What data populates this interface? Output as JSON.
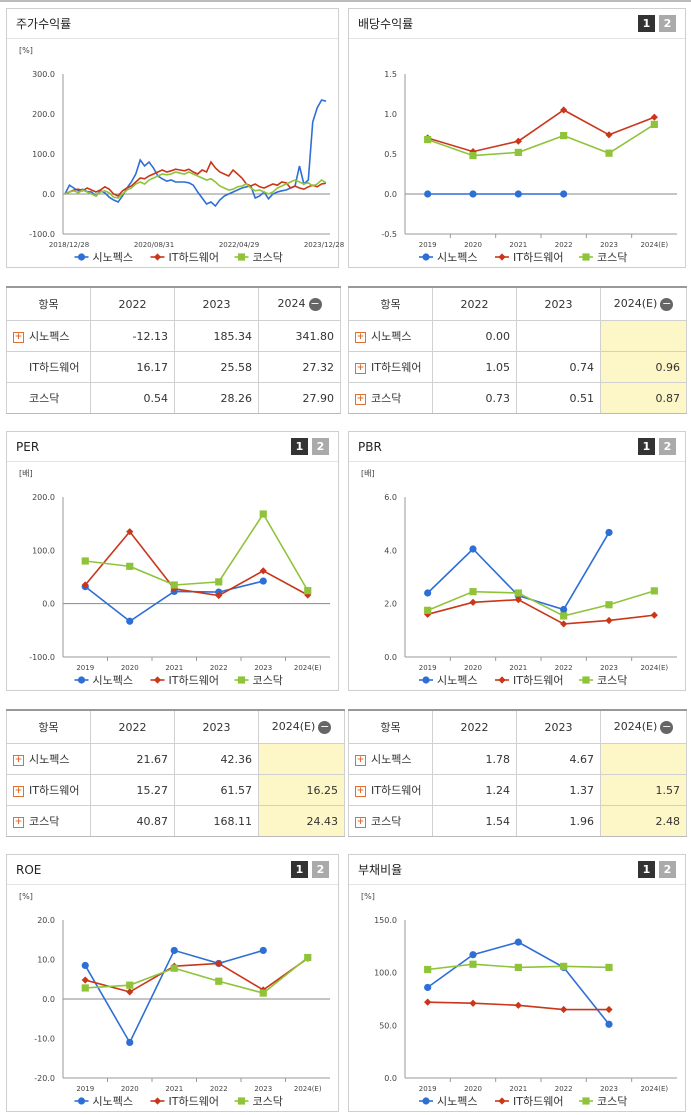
{
  "colors": {
    "s1": "#2e6fd6",
    "s2": "#c9361a",
    "s3": "#8fc43a"
  },
  "series_names": [
    "시노펙스",
    "IT하드웨어",
    "코스닥"
  ],
  "panels": {
    "stock": {
      "title": "주가수익률",
      "unit": "[%]"
    },
    "dividend": {
      "title": "배당수익률",
      "page1": "1",
      "page2": "2"
    },
    "per": {
      "title": "PER",
      "unit": "[배]",
      "page1": "1",
      "page2": "2"
    },
    "pbr": {
      "title": "PBR",
      "unit": "[배]",
      "page1": "1",
      "page2": "2"
    },
    "roe": {
      "title": "ROE",
      "unit": "[%]",
      "page1": "1",
      "page2": "2"
    },
    "debt": {
      "title": "부채비율",
      "unit": "[%]",
      "page1": "1",
      "page2": "2"
    }
  },
  "tables": {
    "stock": {
      "header": [
        "항목",
        "2022",
        "2023",
        "2024"
      ],
      "rows": [
        {
          "name": "시노펙스",
          "plus": true,
          "values": [
            "-12.13",
            "185.34",
            "341.80"
          ]
        },
        {
          "name": "IT하드웨어",
          "plus": false,
          "values": [
            "16.17",
            "25.58",
            "27.32"
          ]
        },
        {
          "name": "코스닥",
          "plus": false,
          "values": [
            "0.54",
            "28.26",
            "27.90"
          ]
        }
      ]
    },
    "dividend": {
      "header": [
        "항목",
        "2022",
        "2023",
        "2024(E)"
      ],
      "rows": [
        {
          "name": "시노펙스",
          "plus": true,
          "values": [
            "0.00",
            "",
            ""
          ]
        },
        {
          "name": "IT하드웨어",
          "plus": true,
          "values": [
            "1.05",
            "0.74",
            "0.96"
          ]
        },
        {
          "name": "코스닥",
          "plus": true,
          "values": [
            "0.73",
            "0.51",
            "0.87"
          ]
        }
      ]
    },
    "per": {
      "header": [
        "항목",
        "2022",
        "2023",
        "2024(E)"
      ],
      "rows": [
        {
          "name": "시노펙스",
          "plus": true,
          "values": [
            "21.67",
            "42.36",
            ""
          ]
        },
        {
          "name": "IT하드웨어",
          "plus": true,
          "values": [
            "15.27",
            "61.57",
            "16.25"
          ]
        },
        {
          "name": "코스닥",
          "plus": true,
          "values": [
            "40.87",
            "168.11",
            "24.43"
          ]
        }
      ]
    },
    "pbr": {
      "header": [
        "항목",
        "2022",
        "2023",
        "2024(E)"
      ],
      "rows": [
        {
          "name": "시노펙스",
          "plus": true,
          "values": [
            "1.78",
            "4.67",
            ""
          ]
        },
        {
          "name": "IT하드웨어",
          "plus": true,
          "values": [
            "1.24",
            "1.37",
            "1.57"
          ]
        },
        {
          "name": "코스닥",
          "plus": true,
          "values": [
            "1.54",
            "1.96",
            "2.48"
          ]
        }
      ]
    }
  },
  "chart_data": [
    {
      "id": "stock",
      "type": "line",
      "title": "주가수익률",
      "ylabel": "[%]",
      "ylim": [
        -100,
        300
      ],
      "yticks": [
        "300.0",
        "200.0",
        "100.0",
        "0.0",
        "-100.0"
      ],
      "xticks": [
        "2018/12/28",
        "2020/08/31",
        "2022/04/29",
        "2023/12/28"
      ],
      "series": [
        {
          "name": "시노펙스",
          "values": [
            0,
            22,
            15,
            8,
            12,
            6,
            5,
            -5,
            8,
            3,
            -8,
            -15,
            -20,
            -5,
            15,
            30,
            50,
            85,
            70,
            80,
            65,
            45,
            38,
            32,
            35,
            30,
            30,
            30,
            28,
            22,
            5,
            -10,
            -25,
            -20,
            -30,
            -15,
            -5,
            0,
            5,
            10,
            15,
            18,
            20,
            -10,
            -5,
            5,
            -12,
            0,
            5,
            8,
            10,
            15,
            20,
            70,
            25,
            35,
            180,
            215,
            235,
            232
          ]
        },
        {
          "name": "IT하드웨어",
          "values": [
            0,
            5,
            10,
            12,
            8,
            15,
            10,
            5,
            10,
            18,
            12,
            0,
            -5,
            8,
            15,
            20,
            30,
            40,
            38,
            45,
            50,
            55,
            60,
            55,
            58,
            62,
            60,
            58,
            62,
            55,
            50,
            60,
            55,
            80,
            65,
            55,
            50,
            45,
            60,
            50,
            40,
            25,
            20,
            25,
            18,
            15,
            20,
            25,
            22,
            30,
            28,
            15,
            20,
            15,
            12,
            18,
            22,
            18,
            25,
            27
          ]
        },
        {
          "name": "코스닥",
          "values": [
            0,
            5,
            8,
            3,
            10,
            5,
            0,
            -5,
            5,
            8,
            3,
            -8,
            -10,
            0,
            10,
            15,
            25,
            30,
            25,
            35,
            40,
            45,
            50,
            48,
            50,
            55,
            52,
            50,
            55,
            50,
            45,
            40,
            35,
            38,
            30,
            20,
            15,
            10,
            12,
            18,
            20,
            25,
            15,
            8,
            10,
            5,
            0,
            5,
            15,
            20,
            25,
            30,
            35,
            30,
            25,
            28,
            20,
            25,
            35,
            28
          ]
        }
      ]
    },
    {
      "id": "dividend",
      "type": "line",
      "title": "배당수익률",
      "ylim": [
        -0.5,
        1.5
      ],
      "yticks": [
        "1.5",
        "1.0",
        "0.5",
        "0.0",
        "-0.5"
      ],
      "categories": [
        "2019",
        "2020",
        "2021",
        "2022",
        "2023",
        "2024(E)"
      ],
      "series": [
        {
          "name": "시노펙스",
          "values": [
            0,
            0,
            0,
            0,
            null,
            null
          ]
        },
        {
          "name": "IT하드웨어",
          "values": [
            0.7,
            0.53,
            0.66,
            1.05,
            0.74,
            0.96
          ]
        },
        {
          "name": "코스닥",
          "values": [
            0.68,
            0.48,
            0.52,
            0.73,
            0.51,
            0.87
          ]
        }
      ]
    },
    {
      "id": "per",
      "type": "line",
      "title": "PER",
      "ylabel": "[배]",
      "ylim": [
        -100,
        200
      ],
      "yticks": [
        "200.0",
        "100.0",
        "0.0",
        "-100.0"
      ],
      "categories": [
        "2019",
        "2020",
        "2021",
        "2022",
        "2023",
        "2024(E)"
      ],
      "series": [
        {
          "name": "시노펙스",
          "values": [
            32,
            -33,
            23,
            21.67,
            42.36,
            null
          ]
        },
        {
          "name": "IT하드웨어",
          "values": [
            35,
            135,
            28,
            15.27,
            61.57,
            16.25
          ]
        },
        {
          "name": "코스닥",
          "values": [
            80,
            70,
            35,
            40.87,
            168.11,
            24.43
          ]
        }
      ]
    },
    {
      "id": "pbr",
      "type": "line",
      "title": "PBR",
      "ylabel": "[배]",
      "ylim": [
        0,
        6
      ],
      "yticks": [
        "6.0",
        "4.0",
        "2.0",
        "0.0"
      ],
      "categories": [
        "2019",
        "2020",
        "2021",
        "2022",
        "2023",
        "2024(E)"
      ],
      "series": [
        {
          "name": "시노펙스",
          "values": [
            2.4,
            4.05,
            2.3,
            1.78,
            4.67,
            null
          ]
        },
        {
          "name": "IT하드웨어",
          "values": [
            1.6,
            2.05,
            2.15,
            1.24,
            1.37,
            1.57
          ]
        },
        {
          "name": "코스닥",
          "values": [
            1.75,
            2.45,
            2.4,
            1.54,
            1.96,
            2.48
          ]
        }
      ]
    },
    {
      "id": "roe",
      "type": "line",
      "title": "ROE",
      "ylabel": "[%]",
      "ylim": [
        -20,
        20
      ],
      "yticks": [
        "20.0",
        "10.0",
        "0.0",
        "-10.0",
        "-20.0"
      ],
      "categories": [
        "2019",
        "2020",
        "2021",
        "2022",
        "2023",
        "2024(E)"
      ],
      "series": [
        {
          "name": "시노펙스",
          "values": [
            8.5,
            -11.0,
            12.3,
            9.0,
            12.3,
            null
          ]
        },
        {
          "name": "IT하드웨어",
          "values": [
            4.8,
            1.8,
            8.3,
            9.0,
            2.3,
            10.3
          ]
        },
        {
          "name": "코스닥",
          "values": [
            2.8,
            3.5,
            7.8,
            4.5,
            1.5,
            10.5
          ]
        }
      ]
    },
    {
      "id": "debt",
      "type": "line",
      "title": "부채비율",
      "ylabel": "[%]",
      "ylim": [
        0,
        150
      ],
      "yticks": [
        "150.0",
        "100.0",
        "50.0",
        "0.0"
      ],
      "categories": [
        "2019",
        "2020",
        "2021",
        "2022",
        "2023",
        "2024(E)"
      ],
      "series": [
        {
          "name": "시노펙스",
          "values": [
            86,
            117,
            129,
            105,
            51,
            null
          ]
        },
        {
          "name": "IT하드웨어",
          "values": [
            72,
            71,
            69,
            65,
            65,
            null
          ]
        },
        {
          "name": "코스닥",
          "values": [
            103,
            108,
            105,
            106,
            105,
            null
          ]
        }
      ]
    }
  ]
}
